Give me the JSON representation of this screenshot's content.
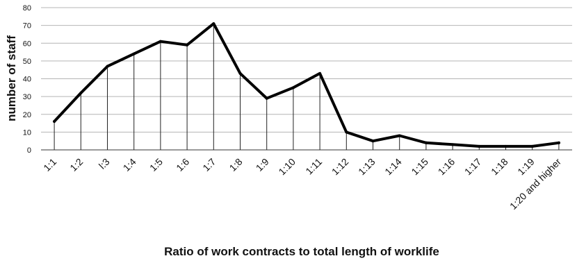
{
  "chart_data": {
    "type": "line",
    "categories": [
      "1:1",
      "1:2",
      "l:3",
      "1:4",
      "1:5",
      "1:6",
      "1:7",
      "1:8",
      "1:9",
      "1:10",
      "1:11",
      "1:12",
      "1:13",
      "1:14",
      "1:15",
      "1:16",
      "1:17",
      "1:18",
      "1:19",
      "1:20 and higher"
    ],
    "values": [
      16,
      32,
      47,
      54,
      61,
      59,
      71,
      43,
      29,
      35,
      43,
      10,
      5,
      8,
      4,
      3,
      2,
      2,
      2,
      4
    ],
    "xlabel": "Ratio of work contracts to total length of worklife",
    "ylabel": "number of staff",
    "ylim": [
      0,
      80
    ],
    "yticks": [
      0,
      10,
      20,
      30,
      40,
      50,
      60,
      70,
      80
    ],
    "grid": true,
    "drop_lines": true,
    "line_color": "#000000",
    "grid_color": "#b4b4b4"
  }
}
